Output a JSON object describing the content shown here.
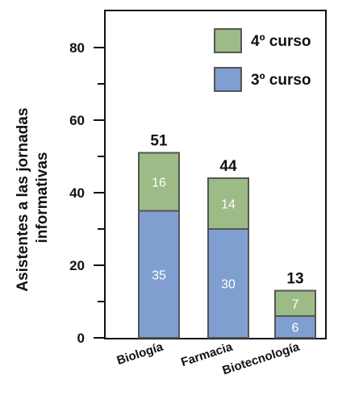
{
  "chart_data": {
    "type": "bar",
    "stacked": true,
    "categories": [
      "Biología",
      "Farmacia",
      "Biotecnología"
    ],
    "series": [
      {
        "name": "3º curso",
        "values": [
          35,
          30,
          6
        ],
        "color": "#7f9fd1"
      },
      {
        "name": "4º curso",
        "values": [
          16,
          14,
          7
        ],
        "color": "#9dbb86"
      }
    ],
    "totals": [
      51,
      44,
      13
    ],
    "ylabel": "Asistentes a las jornadas informativas",
    "ylabel_lines": [
      "Asistentes a las jornadas",
      "informativas"
    ],
    "ylim": [
      0,
      90
    ],
    "yticks": [
      0,
      20,
      40,
      60,
      80
    ],
    "legend_position": "top-right",
    "legend_order": [
      "4º curso",
      "3º curso"
    ],
    "grid": false
  }
}
